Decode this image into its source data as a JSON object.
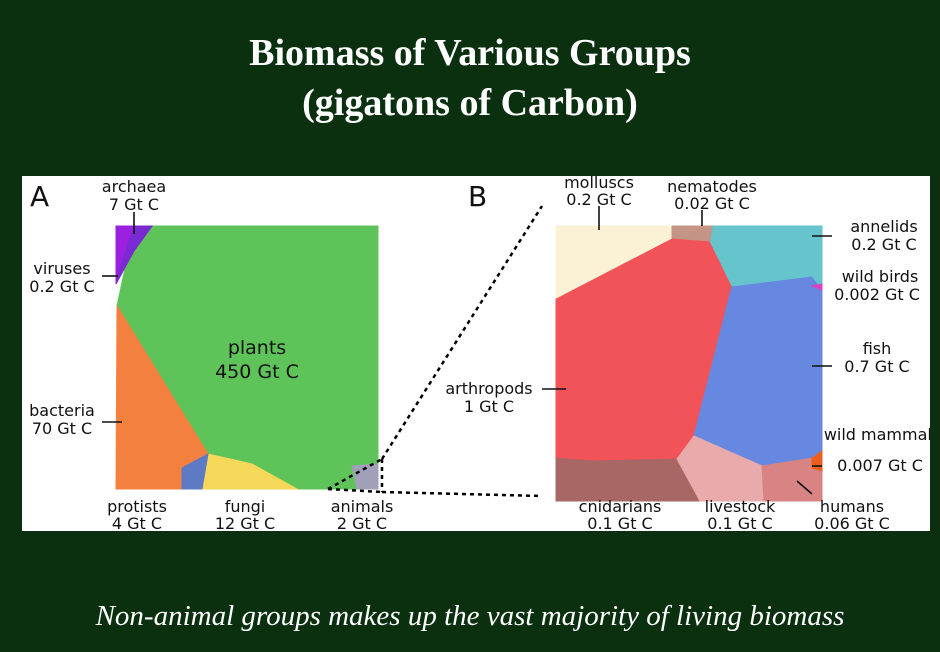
{
  "title_line1": "Biomass of Various Groups",
  "title_line2": "(gigatons of Carbon)",
  "caption": "Non-animal groups makes up the vast majority of living biomass",
  "chart_data": [
    {
      "type": "voronoi-treemap",
      "panel_label": "A",
      "unit": "Gt C",
      "groups": [
        {
          "name": "plants",
          "value_label": "450 Gt C",
          "value": 450,
          "color": "#5ec45a"
        },
        {
          "name": "bacteria",
          "value_label": "70 Gt C",
          "value": 70,
          "color": "#f48040"
        },
        {
          "name": "fungi",
          "value_label": "12 Gt C",
          "value": 12,
          "color": "#f5d85a"
        },
        {
          "name": "archaea",
          "value_label": "7 Gt C",
          "value": 7,
          "color": "#9c20e0"
        },
        {
          "name": "protists",
          "value_label": "4 Gt C",
          "value": 4,
          "color": "#5e7ac4"
        },
        {
          "name": "animals",
          "value_label": "2 Gt C",
          "value": 2,
          "color": "#a0a0b8"
        },
        {
          "name": "viruses",
          "value_label": "0.2 Gt C",
          "value": 0.2,
          "color": "#7a2ad0"
        }
      ]
    },
    {
      "type": "voronoi-treemap",
      "panel_label": "B",
      "unit": "Gt C",
      "groups": [
        {
          "name": "arthropods",
          "value_label": "1 Gt C",
          "value": 1,
          "color": "#f25358"
        },
        {
          "name": "fish",
          "value_label": "0.7 Gt C",
          "value": 0.7,
          "color": "#6688e0"
        },
        {
          "name": "molluscs",
          "value_label": "0.2 Gt C",
          "value": 0.2,
          "color": "#fbf1d4"
        },
        {
          "name": "annelids",
          "value_label": "0.2 Gt C",
          "value": 0.2,
          "color": "#66c4cc"
        },
        {
          "name": "cnidarians",
          "value_label": "0.1 Gt C",
          "value": 0.1,
          "color": "#a86664"
        },
        {
          "name": "livestock",
          "value_label": "0.1 Gt C",
          "value": 0.1,
          "color": "#e8aaaa"
        },
        {
          "name": "humans",
          "value_label": "0.06 Gt C",
          "value": 0.06,
          "color": "#d88484"
        },
        {
          "name": "nematodes",
          "value_label": "0.02 Gt C",
          "value": 0.02,
          "color": "#c49486"
        },
        {
          "name": "wild mammals",
          "value_label": "0.007 Gt C",
          "value": 0.007,
          "color": "#e86020"
        },
        {
          "name": "wild birds",
          "value_label": "0.002 Gt C",
          "value": 0.002,
          "color": "#e040c0"
        }
      ]
    }
  ]
}
